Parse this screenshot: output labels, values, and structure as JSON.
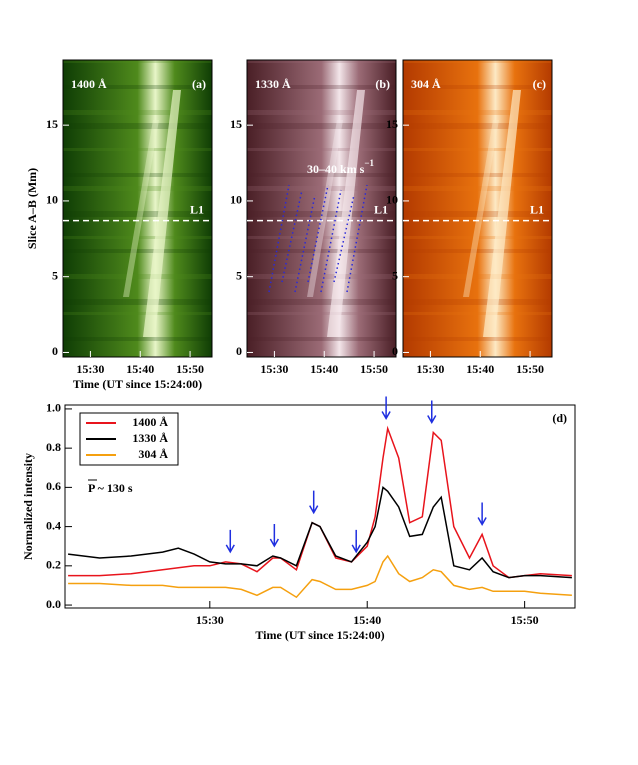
{
  "chart_data": [
    {
      "type": "image",
      "label": "1400 Å",
      "panel": "(a)",
      "ylabel": "Slice A–B (Mm)",
      "xlabel": "Time (UT since 15:24:00)",
      "colormap": [
        "#0f3d05",
        "#4f8a1c",
        "#e8f5c8"
      ],
      "xlim": [
        24.5,
        54.4
      ],
      "xticks": [
        {
          "value": 30,
          "label": "15:30"
        },
        {
          "value": 40,
          "label": "15:40"
        },
        {
          "value": 50,
          "label": "15:50"
        }
      ],
      "ylim": [
        -0.3,
        19.3
      ],
      "yticks": [
        0,
        5,
        10,
        15
      ],
      "cut": {
        "y": 8.7,
        "label": "L1"
      }
    },
    {
      "type": "image",
      "label": "1330 Å",
      "panel": "(b)",
      "colormap": [
        "#4a1f26",
        "#9b6b76",
        "#f3e6ea"
      ],
      "xlim": [
        24.5,
        54.4
      ],
      "xticks": [
        {
          "value": 30,
          "label": "15:30"
        },
        {
          "value": 40,
          "label": "15:40"
        },
        {
          "value": 50,
          "label": "15:50"
        }
      ],
      "ylim": [
        -0.3,
        19.3
      ],
      "yticks": [
        0,
        5,
        10,
        15
      ],
      "cut": {
        "y": 8.7,
        "label": "L1"
      },
      "annotation": {
        "text": "30–40 km s",
        "sup": "−1"
      }
    },
    {
      "type": "image",
      "label": "304 Å",
      "panel": "(c)",
      "colormap": [
        "#b33a00",
        "#e8720e",
        "#fde9c4"
      ],
      "xlim": [
        24.5,
        54.4
      ],
      "xticks": [
        {
          "value": 30,
          "label": "15:30"
        },
        {
          "value": 40,
          "label": "15:40"
        },
        {
          "value": 50,
          "label": "15:50"
        }
      ],
      "ylim": [
        -0.3,
        19.3
      ],
      "yticks": [
        0,
        5,
        10,
        15
      ],
      "cut": {
        "y": 8.7,
        "label": "L1"
      }
    },
    {
      "type": "line",
      "panel": "(d)",
      "ylabel": "Normalized intensity",
      "xlabel": "Time (UT since 15:24:00)",
      "note": "P ~ 130 s",
      "xlim": [
        20.8,
        53.2
      ],
      "xticks": [
        {
          "value": 30,
          "label": "15:30"
        },
        {
          "value": 40,
          "label": "15:40"
        },
        {
          "value": 50,
          "label": "15:50"
        }
      ],
      "ylim": [
        -0.015,
        1.02
      ],
      "yticks": [
        {
          "value": 0,
          "label": "0.0"
        },
        0.2,
        0.4,
        0.6,
        0.8,
        {
          "value": 1,
          "label": "1.0"
        }
      ],
      "arrows": [
        31.3,
        34.1,
        36.6,
        39.3,
        41.2,
        44.1,
        47.3
      ],
      "arrow_color": "#1f2fe0",
      "x": [
        21,
        23,
        25,
        27,
        28,
        29,
        30,
        31,
        32,
        33,
        34,
        34.5,
        35.5,
        36.5,
        37,
        38,
        39,
        40,
        40.5,
        41,
        41.3,
        42,
        42.7,
        43.5,
        44.2,
        44.7,
        45.5,
        46.5,
        47.3,
        48,
        49,
        50,
        51,
        53
      ],
      "series": [
        {
          "name": "1400 Å",
          "color": "#e8141c",
          "values": [
            0.15,
            0.15,
            0.16,
            0.18,
            0.19,
            0.2,
            0.2,
            0.22,
            0.21,
            0.17,
            0.24,
            0.24,
            0.18,
            0.42,
            0.4,
            0.24,
            0.22,
            0.3,
            0.45,
            0.75,
            0.9,
            0.75,
            0.42,
            0.45,
            0.88,
            0.84,
            0.4,
            0.24,
            0.36,
            0.2,
            0.14,
            0.15,
            0.16,
            0.15
          ]
        },
        {
          "name": "1330 Å",
          "color": "#000000",
          "values": [
            0.26,
            0.24,
            0.25,
            0.27,
            0.29,
            0.26,
            0.22,
            0.21,
            0.21,
            0.2,
            0.25,
            0.24,
            0.2,
            0.42,
            0.4,
            0.25,
            0.22,
            0.32,
            0.4,
            0.6,
            0.58,
            0.5,
            0.35,
            0.36,
            0.5,
            0.55,
            0.2,
            0.18,
            0.24,
            0.17,
            0.14,
            0.15,
            0.15,
            0.14
          ]
        },
        {
          "name": "304 Å",
          "color": "#f5a00f",
          "values": [
            0.11,
            0.11,
            0.1,
            0.1,
            0.09,
            0.09,
            0.09,
            0.09,
            0.08,
            0.05,
            0.09,
            0.09,
            0.04,
            0.13,
            0.12,
            0.08,
            0.08,
            0.1,
            0.12,
            0.22,
            0.25,
            0.16,
            0.12,
            0.14,
            0.18,
            0.17,
            0.1,
            0.08,
            0.09,
            0.07,
            0.07,
            0.07,
            0.06,
            0.05
          ]
        }
      ]
    }
  ]
}
